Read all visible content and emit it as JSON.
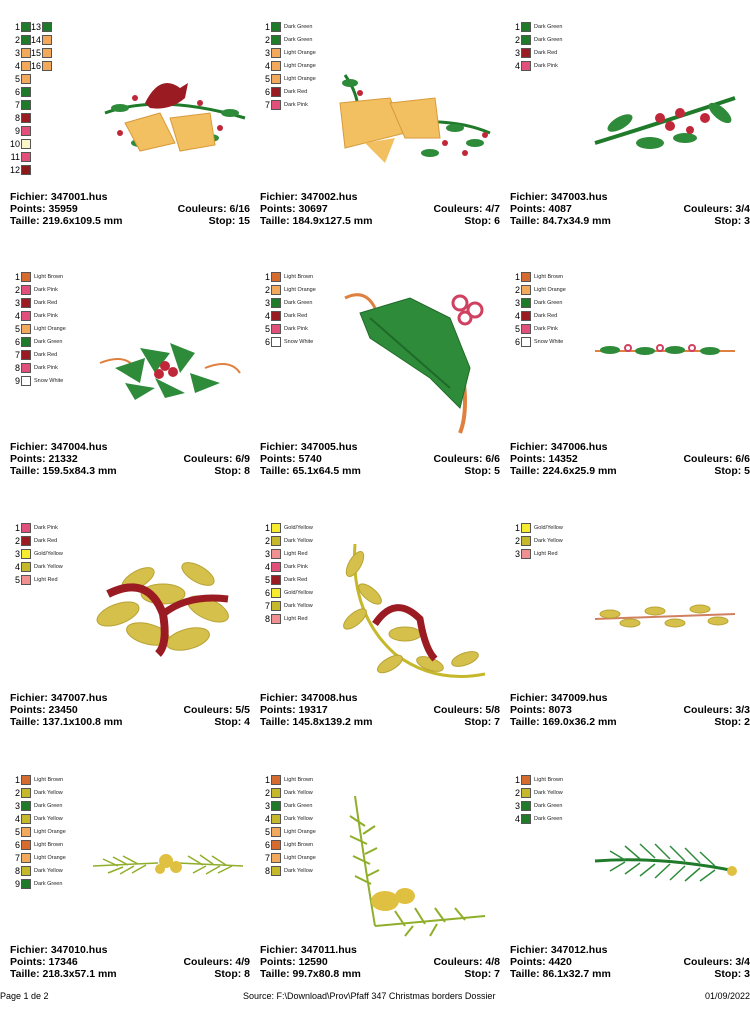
{
  "colors": {
    "Dark Green": "#1f7a2a",
    "Light Orange": "#f2a95c",
    "Dark Red": "#9b1b22",
    "Dark Pink": "#e0507a",
    "Light Brown": "#d66b2f",
    "Snow White": "#ffffff",
    "Gold/Yellow": "#f5ec2e",
    "Dark Yellow": "#c5b82a",
    "Light Red": "#f09090",
    "Pale Yellow": "#fbf6c8"
  },
  "designs": [
    {
      "file_label": "Fichier: 347001.hus",
      "points_label": "Points: 35959",
      "colors_label": "Couleurs: 6/16",
      "size_label": "Taille: 219.6x109.5 mm",
      "stop_label": "Stop: 15",
      "legend_two_columns": true,
      "legend": [
        {
          "n": "1",
          "c": "#1f7a2a"
        },
        {
          "n": "2",
          "c": "#1f7a2a"
        },
        {
          "n": "3",
          "c": "#f2a95c"
        },
        {
          "n": "4",
          "c": "#f2a95c"
        },
        {
          "n": "5",
          "c": "#f2a95c"
        },
        {
          "n": "6",
          "c": "#1f7a2a"
        },
        {
          "n": "7",
          "c": "#1f7a2a"
        },
        {
          "n": "8",
          "c": "#9b1b22"
        },
        {
          "n": "9",
          "c": "#e0507a"
        },
        {
          "n": "10",
          "c": "#fbf6c8"
        },
        {
          "n": "11",
          "c": "#e0507a"
        },
        {
          "n": "12",
          "c": "#8b1a1a"
        }
      ],
      "legend_col2": [
        {
          "n": "13",
          "c": "#1f7a2a"
        },
        {
          "n": "14",
          "c": "#f2a95c"
        },
        {
          "n": "15",
          "c": "#f2a95c"
        },
        {
          "n": "16",
          "c": "#f2a95c"
        }
      ]
    },
    {
      "file_label": "Fichier: 347002.hus",
      "points_label": "Points: 30697",
      "colors_label": "Couleurs: 4/7",
      "size_label": "Taille: 184.9x127.5 mm",
      "stop_label": "Stop: 6",
      "legend": [
        {
          "n": "1",
          "c": "#1f7a2a",
          "name": "Dark Green"
        },
        {
          "n": "2",
          "c": "#1f7a2a",
          "name": "Dark Green"
        },
        {
          "n": "3",
          "c": "#f2a95c",
          "name": "Light Orange"
        },
        {
          "n": "4",
          "c": "#f2a95c",
          "name": "Light Orange"
        },
        {
          "n": "5",
          "c": "#f2a95c",
          "name": "Light Orange"
        },
        {
          "n": "6",
          "c": "#9b1b22",
          "name": "Dark Red"
        },
        {
          "n": "7",
          "c": "#e0507a",
          "name": "Dark Pink"
        }
      ]
    },
    {
      "file_label": "Fichier: 347003.hus",
      "points_label": "Points: 4087",
      "colors_label": "Couleurs: 3/4",
      "size_label": "Taille: 84.7x34.9 mm",
      "stop_label": "Stop: 3",
      "legend": [
        {
          "n": "1",
          "c": "#1f7a2a",
          "name": "Dark Green"
        },
        {
          "n": "2",
          "c": "#1f7a2a",
          "name": "Dark Green"
        },
        {
          "n": "3",
          "c": "#9b1b22",
          "name": "Dark Red"
        },
        {
          "n": "4",
          "c": "#e0507a",
          "name": "Dark Pink"
        }
      ]
    },
    {
      "file_label": "Fichier: 347004.hus",
      "points_label": "Points: 21332",
      "colors_label": "Couleurs: 6/9",
      "size_label": "Taille: 159.5x84.3 mm",
      "stop_label": "Stop: 8",
      "legend": [
        {
          "n": "1",
          "c": "#d66b2f",
          "name": "Light Brown"
        },
        {
          "n": "2",
          "c": "#e0507a",
          "name": "Dark Pink"
        },
        {
          "n": "3",
          "c": "#9b1b22",
          "name": "Dark Red"
        },
        {
          "n": "4",
          "c": "#e0507a",
          "name": "Dark Pink"
        },
        {
          "n": "5",
          "c": "#f2a95c",
          "name": "Light Orange"
        },
        {
          "n": "6",
          "c": "#1f7a2a",
          "name": "Dark Green"
        },
        {
          "n": "7",
          "c": "#9b1b22",
          "name": "Dark Red"
        },
        {
          "n": "8",
          "c": "#e0507a",
          "name": "Dark Pink"
        },
        {
          "n": "9",
          "c": "#ffffff",
          "name": "Snow White"
        }
      ]
    },
    {
      "file_label": "Fichier: 347005.hus",
      "points_label": "Points: 5740",
      "colors_label": "Couleurs: 6/6",
      "size_label": "Taille: 65.1x64.5 mm",
      "stop_label": "Stop: 5",
      "legend": [
        {
          "n": "1",
          "c": "#d66b2f",
          "name": "Light Brown"
        },
        {
          "n": "2",
          "c": "#f2a95c",
          "name": "Light Orange"
        },
        {
          "n": "3",
          "c": "#1f7a2a",
          "name": "Dark Green"
        },
        {
          "n": "4",
          "c": "#9b1b22",
          "name": "Dark Red"
        },
        {
          "n": "5",
          "c": "#e0507a",
          "name": "Dark Pink"
        },
        {
          "n": "6",
          "c": "#ffffff",
          "name": "Snow White"
        }
      ]
    },
    {
      "file_label": "Fichier: 347006.hus",
      "points_label": "Points: 14352",
      "colors_label": "Couleurs: 6/6",
      "size_label": "Taille: 224.6x25.9 mm",
      "stop_label": "Stop: 5",
      "legend": [
        {
          "n": "1",
          "c": "#d66b2f",
          "name": "Light Brown"
        },
        {
          "n": "2",
          "c": "#f2a95c",
          "name": "Light Orange"
        },
        {
          "n": "3",
          "c": "#1f7a2a",
          "name": "Dark Green"
        },
        {
          "n": "4",
          "c": "#9b1b22",
          "name": "Dark Red"
        },
        {
          "n": "5",
          "c": "#e0507a",
          "name": "Dark Pink"
        },
        {
          "n": "6",
          "c": "#ffffff",
          "name": "Snow White"
        }
      ]
    },
    {
      "file_label": "Fichier: 347007.hus",
      "points_label": "Points: 23450",
      "colors_label": "Couleurs: 5/5",
      "size_label": "Taille: 137.1x100.8 mm",
      "stop_label": "Stop: 4",
      "legend": [
        {
          "n": "1",
          "c": "#e0507a",
          "name": "Dark Pink"
        },
        {
          "n": "2",
          "c": "#9b1b22",
          "name": "Dark Red"
        },
        {
          "n": "3",
          "c": "#f5ec2e",
          "name": "Gold/Yellow"
        },
        {
          "n": "4",
          "c": "#c5b82a",
          "name": "Dark Yellow"
        },
        {
          "n": "5",
          "c": "#f09090",
          "name": "Light Red"
        }
      ]
    },
    {
      "file_label": "Fichier: 347008.hus",
      "points_label": "Points: 19317",
      "colors_label": "Couleurs: 5/8",
      "size_label": "Taille: 145.8x139.2 mm",
      "stop_label": "Stop: 7",
      "legend": [
        {
          "n": "1",
          "c": "#f5ec2e",
          "name": "Gold/Yellow"
        },
        {
          "n": "2",
          "c": "#c5b82a",
          "name": "Dark Yellow"
        },
        {
          "n": "3",
          "c": "#f09090",
          "name": "Light Red"
        },
        {
          "n": "4",
          "c": "#e0507a",
          "name": "Dark Pink"
        },
        {
          "n": "5",
          "c": "#9b1b22",
          "name": "Dark Red"
        },
        {
          "n": "6",
          "c": "#f5ec2e",
          "name": "Gold/Yellow"
        },
        {
          "n": "7",
          "c": "#c5b82a",
          "name": "Dark Yellow"
        },
        {
          "n": "8",
          "c": "#f09090",
          "name": "Light Red"
        }
      ]
    },
    {
      "file_label": "Fichier: 347009.hus",
      "points_label": "Points: 8073",
      "colors_label": "Couleurs: 3/3",
      "size_label": "Taille: 169.0x36.2 mm",
      "stop_label": "Stop: 2",
      "legend": [
        {
          "n": "1",
          "c": "#f5ec2e",
          "name": "Gold/Yellow"
        },
        {
          "n": "2",
          "c": "#c5b82a",
          "name": "Dark Yellow"
        },
        {
          "n": "3",
          "c": "#f09090",
          "name": "Light Red"
        }
      ]
    },
    {
      "file_label": "Fichier: 347010.hus",
      "points_label": "Points: 17346",
      "colors_label": "Couleurs: 4/9",
      "size_label": "Taille: 218.3x57.1 mm",
      "stop_label": "Stop: 8",
      "legend": [
        {
          "n": "1",
          "c": "#d66b2f",
          "name": "Light Brown"
        },
        {
          "n": "2",
          "c": "#c5b82a",
          "name": "Dark Yellow"
        },
        {
          "n": "3",
          "c": "#1f7a2a",
          "name": "Dark Green"
        },
        {
          "n": "4",
          "c": "#c5b82a",
          "name": "Dark Yellow"
        },
        {
          "n": "5",
          "c": "#f2a95c",
          "name": "Light Orange"
        },
        {
          "n": "6",
          "c": "#d66b2f",
          "name": "Light Brown"
        },
        {
          "n": "7",
          "c": "#f2a95c",
          "name": "Light Orange"
        },
        {
          "n": "8",
          "c": "#c5b82a",
          "name": "Dark Yellow"
        },
        {
          "n": "9",
          "c": "#1f7a2a",
          "name": "Dark Green"
        }
      ]
    },
    {
      "file_label": "Fichier: 347011.hus",
      "points_label": "Points: 12590",
      "colors_label": "Couleurs: 4/8",
      "size_label": "Taille: 99.7x80.8 mm",
      "stop_label": "Stop: 7",
      "legend": [
        {
          "n": "1",
          "c": "#d66b2f",
          "name": "Light Brown"
        },
        {
          "n": "2",
          "c": "#c5b82a",
          "name": "Dark Yellow"
        },
        {
          "n": "3",
          "c": "#1f7a2a",
          "name": "Dark Green"
        },
        {
          "n": "4",
          "c": "#c5b82a",
          "name": "Dark Yellow"
        },
        {
          "n": "5",
          "c": "#f2a95c",
          "name": "Light Orange"
        },
        {
          "n": "6",
          "c": "#d66b2f",
          "name": "Light Brown"
        },
        {
          "n": "7",
          "c": "#f2a95c",
          "name": "Light Orange"
        },
        {
          "n": "8",
          "c": "#c5b82a",
          "name": "Dark Yellow"
        }
      ]
    },
    {
      "file_label": "Fichier: 347012.hus",
      "points_label": "Points: 4420",
      "colors_label": "Couleurs: 3/4",
      "size_label": "Taille: 86.1x32.7 mm",
      "stop_label": "Stop: 3",
      "legend": [
        {
          "n": "1",
          "c": "#d66b2f",
          "name": "Light Brown"
        },
        {
          "n": "2",
          "c": "#c5b82a",
          "name": "Dark Yellow"
        },
        {
          "n": "3",
          "c": "#1f7a2a",
          "name": "Dark Green"
        },
        {
          "n": "4",
          "c": "#1f7a2a",
          "name": "Dark Green"
        }
      ]
    }
  ],
  "footer": {
    "page": "Page 1 de 2",
    "source": "Source: F:\\Download\\Prov\\Pfaff 347 Christmas borders Dossier",
    "date": "01/09/2022"
  }
}
